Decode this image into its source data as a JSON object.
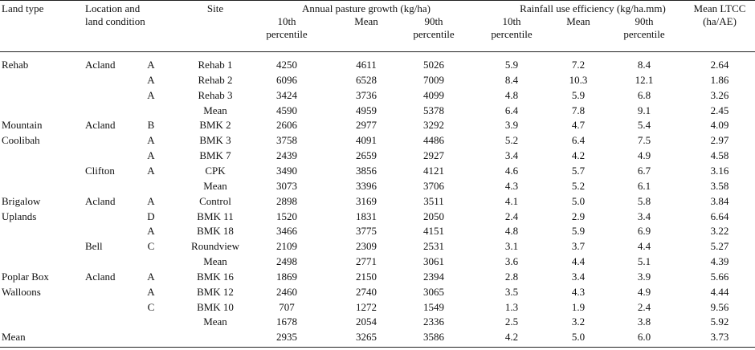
{
  "headers": {
    "land_type": "Land type",
    "location": [
      "Location and",
      "land condition"
    ],
    "site": "Site",
    "pasture_group": "Annual pasture growth (kg/ha)",
    "rue_group": "Rainfall use efficiency (kg/ha.mm)",
    "ltcc": [
      "Mean LTCC",
      "(ha/AE)"
    ],
    "p10": [
      "10th",
      "percentile"
    ],
    "mean": "Mean",
    "p90": [
      "90th",
      "percentile"
    ]
  },
  "rows": [
    {
      "land": "Rehab",
      "loc": "Acland",
      "cond": "A",
      "site": "Rehab 1",
      "v": [
        "4250",
        "4611",
        "5026",
        "5.9",
        "7.2",
        "8.4",
        "2.64"
      ]
    },
    {
      "land": "",
      "loc": "",
      "cond": "A",
      "site": "Rehab 2",
      "v": [
        "6096",
        "6528",
        "7009",
        "8.4",
        "10.3",
        "12.1",
        "1.86"
      ]
    },
    {
      "land": "",
      "loc": "",
      "cond": "A",
      "site": "Rehab 3",
      "v": [
        "3424",
        "3736",
        "4099",
        "4.8",
        "5.9",
        "6.8",
        "3.26"
      ]
    },
    {
      "land": "",
      "loc": "",
      "cond": "",
      "site": "Mean",
      "v": [
        "4590",
        "4959",
        "5378",
        "6.4",
        "7.8",
        "9.1",
        "2.45"
      ]
    },
    {
      "land": "Mountain",
      "loc": "Acland",
      "cond": "B",
      "site": "BMK 2",
      "v": [
        "2606",
        "2977",
        "3292",
        "3.9",
        "4.7",
        "5.4",
        "4.09"
      ]
    },
    {
      "land": "Coolibah",
      "loc": "",
      "cond": "A",
      "site": "BMK 3",
      "v": [
        "3758",
        "4091",
        "4486",
        "5.2",
        "6.4",
        "7.5",
        "2.97"
      ]
    },
    {
      "land": "",
      "loc": "",
      "cond": "A",
      "site": "BMK 7",
      "v": [
        "2439",
        "2659",
        "2927",
        "3.4",
        "4.2",
        "4.9",
        "4.58"
      ]
    },
    {
      "land": "",
      "loc": "Clifton",
      "cond": "A",
      "site": "CPK",
      "v": [
        "3490",
        "3856",
        "4121",
        "4.6",
        "5.7",
        "6.7",
        "3.16"
      ]
    },
    {
      "land": "",
      "loc": "",
      "cond": "",
      "site": "Mean",
      "v": [
        "3073",
        "3396",
        "3706",
        "4.3",
        "5.2",
        "6.1",
        "3.58"
      ]
    },
    {
      "land": "Brigalow",
      "loc": "Acland",
      "cond": "A",
      "site": "Control",
      "v": [
        "2898",
        "3169",
        "3511",
        "4.1",
        "5.0",
        "5.8",
        "3.84"
      ]
    },
    {
      "land": "Uplands",
      "loc": "",
      "cond": "D",
      "site": "BMK 11",
      "v": [
        "1520",
        "1831",
        "2050",
        "2.4",
        "2.9",
        "3.4",
        "6.64"
      ]
    },
    {
      "land": "",
      "loc": "",
      "cond": "A",
      "site": "BMK 18",
      "v": [
        "3466",
        "3775",
        "4151",
        "4.8",
        "5.9",
        "6.9",
        "3.22"
      ]
    },
    {
      "land": "",
      "loc": "Bell",
      "cond": "C",
      "site": "Roundview",
      "v": [
        "2109",
        "2309",
        "2531",
        "3.1",
        "3.7",
        "4.4",
        "5.27"
      ]
    },
    {
      "land": "",
      "loc": "",
      "cond": "",
      "site": "Mean",
      "v": [
        "2498",
        "2771",
        "3061",
        "3.6",
        "4.4",
        "5.1",
        "4.39"
      ]
    },
    {
      "land": "Poplar Box",
      "loc": "Acland",
      "cond": "A",
      "site": "BMK 16",
      "v": [
        "1869",
        "2150",
        "2394",
        "2.8",
        "3.4",
        "3.9",
        "5.66"
      ]
    },
    {
      "land": "Walloons",
      "loc": "",
      "cond": "A",
      "site": "BMK 12",
      "v": [
        "2460",
        "2740",
        "3065",
        "3.5",
        "4.3",
        "4.9",
        "4.44"
      ]
    },
    {
      "land": "",
      "loc": "",
      "cond": "C",
      "site": "BMK 10",
      "v": [
        "707",
        "1272",
        "1549",
        "1.3",
        "1.9",
        "2.4",
        "9.56"
      ]
    },
    {
      "land": "",
      "loc": "",
      "cond": "",
      "site": "Mean",
      "v": [
        "1678",
        "2054",
        "2336",
        "2.5",
        "3.2",
        "3.8",
        "5.92"
      ]
    },
    {
      "land": "Mean",
      "loc": "",
      "cond": "",
      "site": "",
      "v": [
        "2935",
        "3265",
        "3586",
        "4.2",
        "5.0",
        "6.0",
        "3.73"
      ]
    }
  ]
}
